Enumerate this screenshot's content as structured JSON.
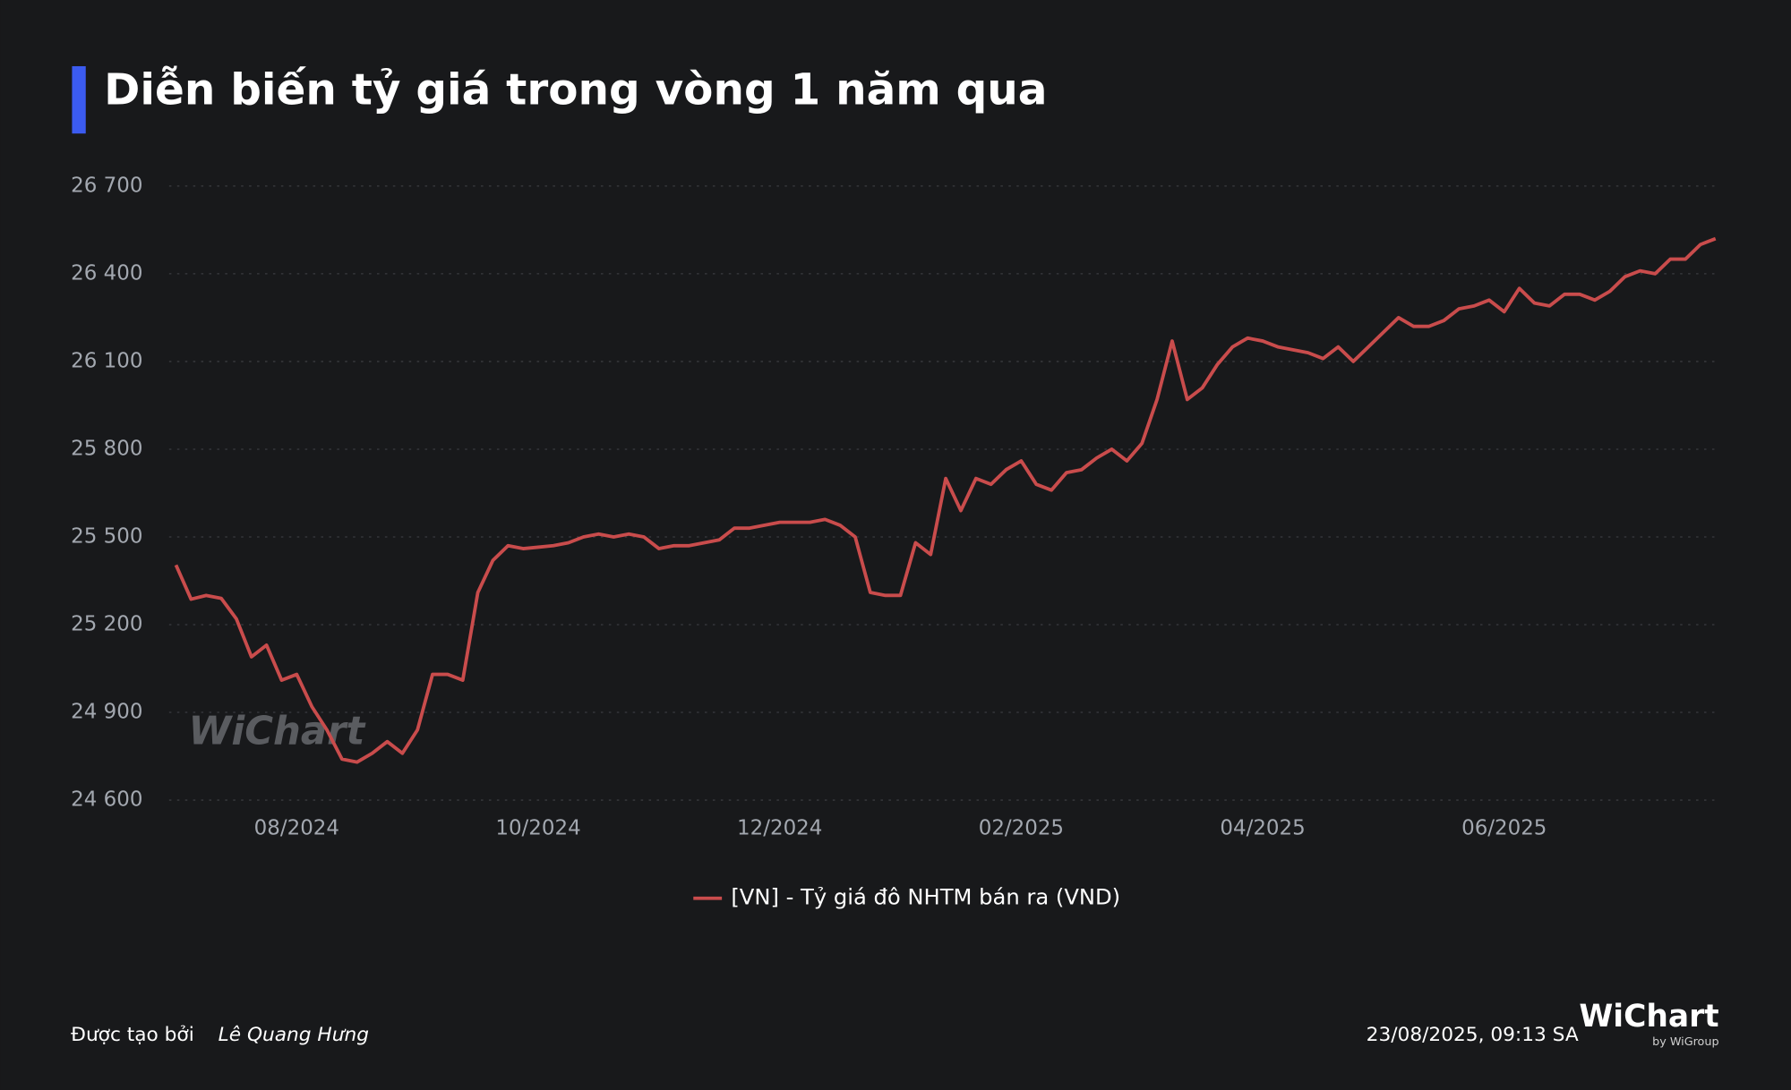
{
  "chart_data": {
    "type": "line",
    "title": "Diễn biến tỷ giá trong vòng 1 năm qua",
    "categories": [
      null,
      null,
      null,
      null,
      null,
      null,
      null,
      null,
      "08/2024",
      null,
      null,
      null,
      null,
      null,
      null,
      null,
      null,
      null,
      null,
      null,
      null,
      null,
      null,
      null,
      "10/2024",
      null,
      null,
      null,
      null,
      null,
      null,
      null,
      null,
      null,
      null,
      null,
      null,
      null,
      null,
      null,
      "12/2024",
      null,
      null,
      null,
      null,
      null,
      null,
      null,
      null,
      null,
      null,
      null,
      null,
      null,
      null,
      null,
      "02/2025",
      null,
      null,
      null,
      null,
      null,
      null,
      null,
      null,
      null,
      null,
      null,
      null,
      null,
      null,
      null,
      "04/2025",
      null,
      null,
      null,
      null,
      null,
      null,
      null,
      null,
      null,
      null,
      null,
      null,
      null,
      null,
      null,
      "06/2025",
      null,
      null,
      null,
      null,
      null,
      null,
      null,
      null,
      null,
      null,
      null,
      null,
      null,
      null
    ],
    "series": [
      {
        "name": "[VN] - Tỷ giá đô NHTM bán ra (VND)",
        "color": "#c94c4c",
        "values": [
          25404,
          25287,
          25300,
          25290,
          25220,
          25090,
          25130,
          25010,
          25030,
          24920,
          24840,
          24740,
          24730,
          24760,
          24800,
          24760,
          24840,
          25030,
          25030,
          25010,
          25310,
          25420,
          25470,
          25460,
          25465,
          25470,
          25480,
          25500,
          25510,
          25500,
          25510,
          25500,
          25460,
          25470,
          25470,
          25480,
          25490,
          25530,
          25530,
          25540,
          25550,
          25550,
          25550,
          25560,
          25540,
          25500,
          25310,
          25300,
          25300,
          25480,
          25440,
          25700,
          25590,
          25700,
          25680,
          25730,
          25760,
          25680,
          25660,
          25720,
          25730,
          25770,
          25800,
          25760,
          25820,
          25970,
          26170,
          25970,
          26010,
          26090,
          26150,
          26180,
          26170,
          26150,
          26140,
          26130,
          26110,
          26150,
          26100,
          26150,
          26200,
          26250,
          26220,
          26220,
          26240,
          26280,
          26290,
          26310,
          26270,
          26350,
          26300,
          26290,
          26330,
          26330,
          26310,
          26340,
          26390,
          26410,
          26400,
          26450,
          26450,
          26500,
          26520
        ]
      }
    ],
    "ylim": [
      24600,
      26700
    ],
    "yticks": [
      {
        "value": 24600,
        "label": "24 600"
      },
      {
        "value": 24900,
        "label": "24 900"
      },
      {
        "value": 25200,
        "label": "25 200"
      },
      {
        "value": 25500,
        "label": "25 500"
      },
      {
        "value": 25800,
        "label": "25 800"
      },
      {
        "value": 26100,
        "label": "26 100"
      },
      {
        "value": 26400,
        "label": "26 400"
      },
      {
        "value": 26700,
        "label": "26 700"
      }
    ],
    "grid": true,
    "watermark": "WiChart"
  },
  "footer": {
    "created_by": "Được tạo bởi",
    "author": "Lê Quang Hưng",
    "timestamp": "23/08/2025, 09:13 SA",
    "logo": "WiChart",
    "logo_sub": "by WiGroup"
  }
}
